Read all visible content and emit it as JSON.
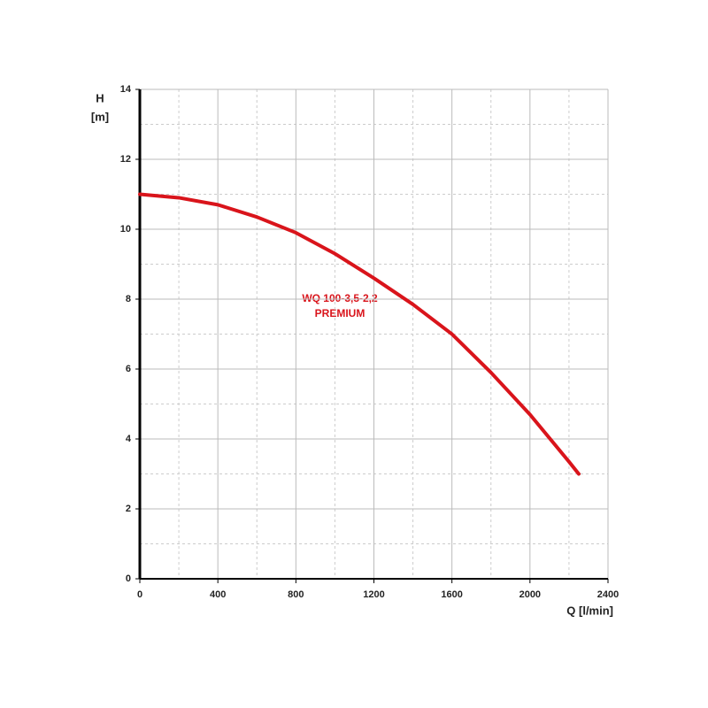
{
  "chart_data": {
    "type": "line",
    "y_label_top": "H",
    "y_label_unit": "[m]",
    "x_label": "Q [l/min]",
    "annotation": [
      "WQ 100-3,5-2,2",
      "PREMIUM"
    ],
    "x": [
      0,
      200,
      400,
      600,
      800,
      1000,
      1200,
      1400,
      1600,
      1800,
      2000,
      2200,
      2250
    ],
    "series": [
      {
        "color": "#d9141b",
        "values": [
          11,
          10.9,
          10.7,
          10.35,
          9.9,
          9.3,
          8.6,
          7.85,
          7.0,
          5.9,
          4.7,
          3.35,
          3.0
        ]
      }
    ],
    "xlim": [
      0,
      2400
    ],
    "xticks": [
      0,
      400,
      800,
      1200,
      1600,
      2000,
      2400
    ],
    "ylim": [
      0,
      14
    ],
    "yticks": [
      0,
      2,
      4,
      6,
      8,
      10,
      12,
      14
    ],
    "xminorticks": [
      200,
      600,
      1000,
      1400,
      1800,
      2200
    ],
    "yminorticks": [
      1,
      3,
      5,
      7,
      9,
      11,
      13
    ],
    "grid": true
  }
}
